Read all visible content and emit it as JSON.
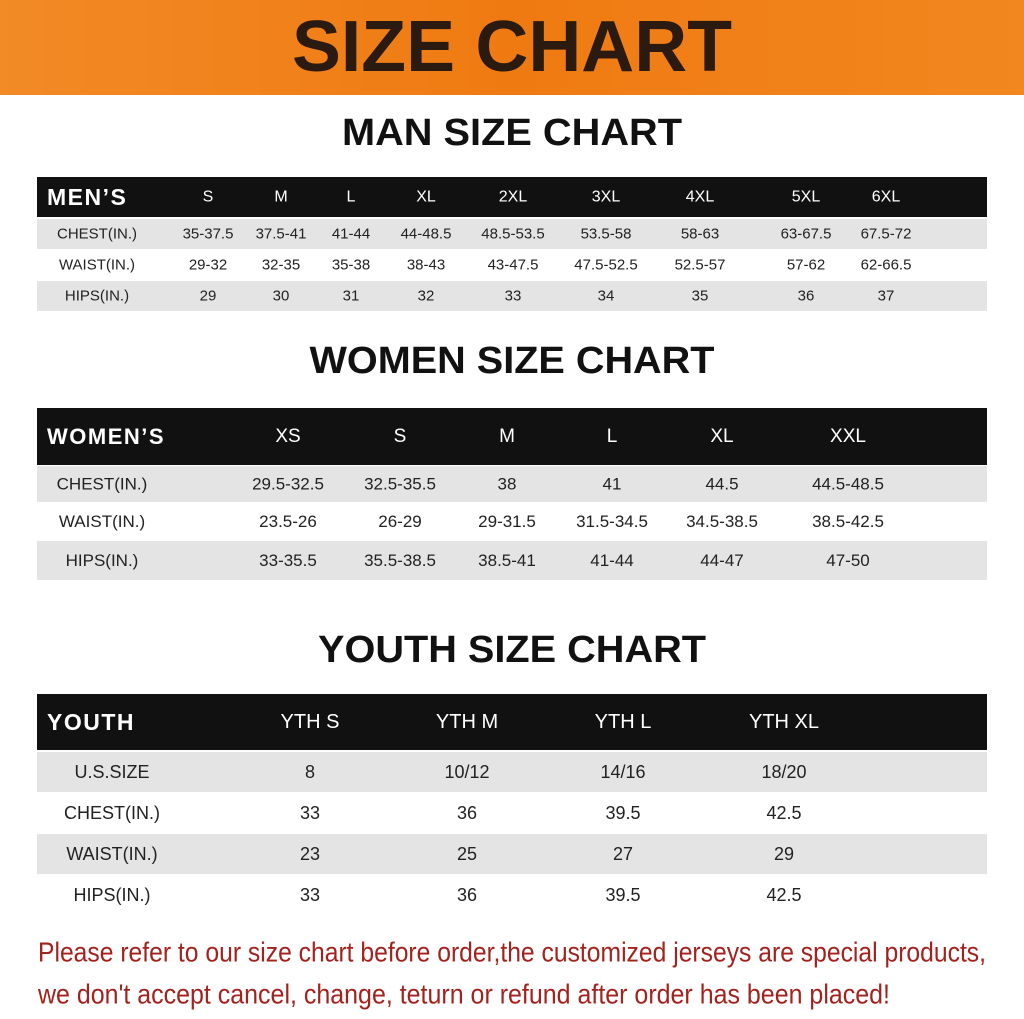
{
  "header": {
    "title": "SIZE CHART"
  },
  "tables": [
    {
      "title": "MAN SIZE CHART",
      "columns": [
        "MEN’S",
        "S",
        "M",
        "L",
        "XL",
        "2XL",
        "3XL",
        "4XL",
        "5XL",
        "6XL"
      ],
      "rows": [
        [
          "CHEST(IN.)",
          "35-37.5",
          "37.5-41",
          "41-44",
          "44-48.5",
          "48.5-53.5",
          "53.5-58",
          "58-63",
          "63-67.5",
          "67.5-72"
        ],
        [
          "WAIST(IN.)",
          "29-32",
          "32-35",
          "35-38",
          "38-43",
          "43-47.5",
          "47.5-52.5",
          "52.5-57",
          "57-62",
          "62-66.5"
        ],
        [
          "HIPS(IN.)",
          "29",
          "30",
          "31",
          "32",
          "33",
          "34",
          "35",
          "36",
          "37"
        ]
      ]
    },
    {
      "title": "WOMEN SIZE CHART",
      "columns": [
        "WOMEN’S",
        "XS",
        "S",
        "M",
        "L",
        "XL",
        "XXL"
      ],
      "rows": [
        [
          "CHEST(IN.)",
          "29.5-32.5",
          "32.5-35.5",
          "38",
          "41",
          "44.5",
          "44.5-48.5"
        ],
        [
          "WAIST(IN.)",
          "23.5-26",
          "26-29",
          "29-31.5",
          "31.5-34.5",
          "34.5-38.5",
          "38.5-42.5"
        ],
        [
          "HIPS(IN.)",
          "33-35.5",
          "35.5-38.5",
          "38.5-41",
          "41-44",
          "44-47",
          "47-50"
        ]
      ]
    },
    {
      "title": "YOUTH SIZE CHART",
      "columns": [
        "YOUTH",
        "YTH S",
        "YTH M",
        "YTH L",
        "YTH XL"
      ],
      "rows": [
        [
          "U.S.SIZE",
          "8",
          "10/12",
          "14/16",
          "18/20"
        ],
        [
          "CHEST(IN.)",
          "33",
          "36",
          "39.5",
          "42.5"
        ],
        [
          "WAIST(IN.)",
          "23",
          "25",
          "27",
          "29"
        ],
        [
          "HIPS(IN.)",
          "33",
          "36",
          "39.5",
          "42.5"
        ]
      ]
    }
  ],
  "footer": [
    "Please refer to our size chart before order,the customized jerseys are special products,",
    "we don't accept cancel, change, teturn or refund after order has been placed!"
  ]
}
